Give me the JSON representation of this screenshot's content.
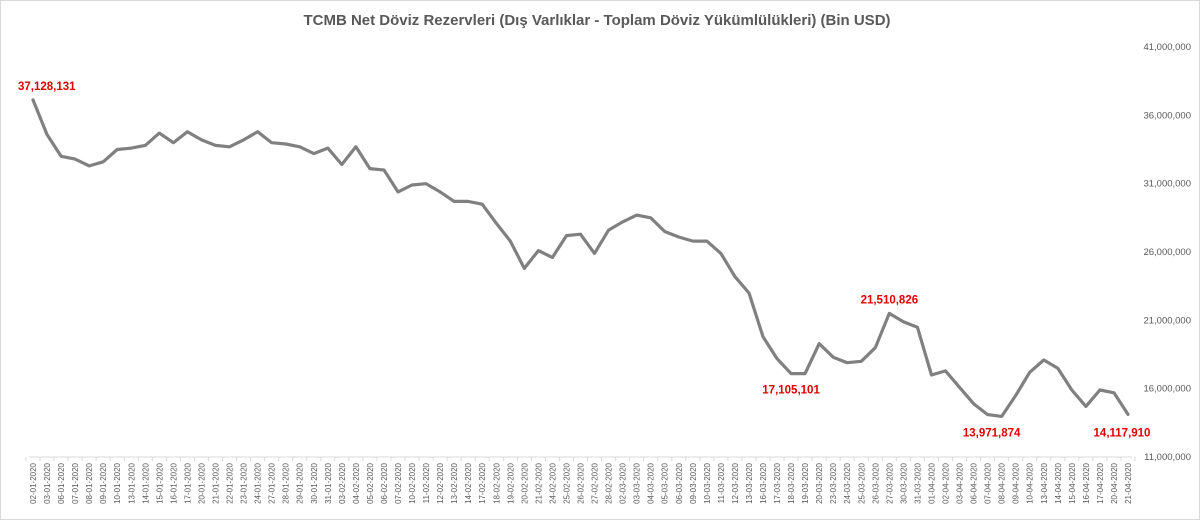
{
  "chart_data": {
    "type": "line",
    "title": "TCMB Net Döviz Rezervleri (Dış Varlıklar  - Toplam Döviz Yükümlülükleri)  (Bin USD)",
    "xlabel": "",
    "ylabel": "",
    "ylim": [
      11000000,
      41000000
    ],
    "y_ticks": [
      "11,000,000",
      "16,000,000",
      "21,000,000",
      "26,000,000",
      "31,000,000",
      "36,000,000",
      "41,000,000"
    ],
    "y_tick_values": [
      11000000,
      16000000,
      21000000,
      26000000,
      31000000,
      36000000,
      41000000
    ],
    "y_axis_position": "right",
    "grid": false,
    "legend": "none",
    "line_color": "#808080",
    "label_color": "#e00000",
    "x": [
      "02-01-2020",
      "03-01-2020",
      "06-01-2020",
      "07-01-2020",
      "08-01-2020",
      "09-01-2020",
      "10-01-2020",
      "13-01-2020",
      "14-01-2020",
      "15-01-2020",
      "16-01-2020",
      "17-01-2020",
      "20-01-2020",
      "21-01-2020",
      "22-01-2020",
      "23-01-2020",
      "24-01-2020",
      "27-01-2020",
      "28-01-2020",
      "29-01-2020",
      "30-01-2020",
      "31-01-2020",
      "03-02-2020",
      "04-02-2020",
      "05-02-2020",
      "06-02-2020",
      "07-02-2020",
      "10-02-2020",
      "11-02-2020",
      "12-02-2020",
      "13-02-2020",
      "14-02-2020",
      "17-02-2020",
      "18-02-2020",
      "19-02-2020",
      "20-02-2020",
      "21-02-2020",
      "24-02-2020",
      "25-02-2020",
      "26-02-2020",
      "27-02-2020",
      "28-02-2020",
      "02-03-2020",
      "03-03-2020",
      "04-03-2020",
      "05-03-2020",
      "06-03-2020",
      "09-03-2020",
      "10-03-2020",
      "11-03-2020",
      "12-03-2020",
      "13-03-2020",
      "16-03-2020",
      "17-03-2020",
      "18-03-2020",
      "19-03-2020",
      "20-03-2020",
      "23-03-2020",
      "24-03-2020",
      "25-03-2020",
      "26-03-2020",
      "27-03-2020",
      "30-03-2020",
      "31-03-2020",
      "01-04-2020",
      "02-04-2020",
      "03-04-2020",
      "06-04-2020",
      "07-04-2020",
      "08-04-2020",
      "09-04-2020",
      "10-04-2020",
      "13-04-2020",
      "14-04-2020",
      "15-04-2020",
      "16-04-2020",
      "17-04-2020",
      "20-04-2020",
      "21-04-2020"
    ],
    "series": [
      {
        "values": [
          37128131,
          34600000,
          33000000,
          32800000,
          32300000,
          32600000,
          33500000,
          33600000,
          33800000,
          34700000,
          34000000,
          34800000,
          34200000,
          33800000,
          33700000,
          34200000,
          34800000,
          34000000,
          33900000,
          33700000,
          33200000,
          33600000,
          32400000,
          33700000,
          32100000,
          32000000,
          30400000,
          30900000,
          31000000,
          30400000,
          29700000,
          29700000,
          29500000,
          28100000,
          26800000,
          24800000,
          26100000,
          25600000,
          27200000,
          27300000,
          25900000,
          27600000,
          28200000,
          28700000,
          28500000,
          27500000,
          27100000,
          26800000,
          26800000,
          25900000,
          24200000,
          23000000,
          19800000,
          18200000,
          17105101,
          17100000,
          19300000,
          18300000,
          17900000,
          18000000,
          19000000,
          21510826,
          20900000,
          20500000,
          17000000,
          17300000,
          16100000,
          14900000,
          14100000,
          13971874,
          15500000,
          17200000,
          18100000,
          17500000,
          15900000,
          14700000,
          15900000,
          15700000,
          14117910
        ]
      }
    ],
    "data_labels": [
      {
        "x": "02-01-2020",
        "text": "37,128,131"
      },
      {
        "x": "18-03-2020",
        "text": "17,105,101"
      },
      {
        "x": "27-03-2020",
        "text": "21,510,826"
      },
      {
        "x": "08-04-2020",
        "text": "13,971,874"
      },
      {
        "x": "21-04-2020",
        "text": "14,117,910"
      }
    ]
  }
}
